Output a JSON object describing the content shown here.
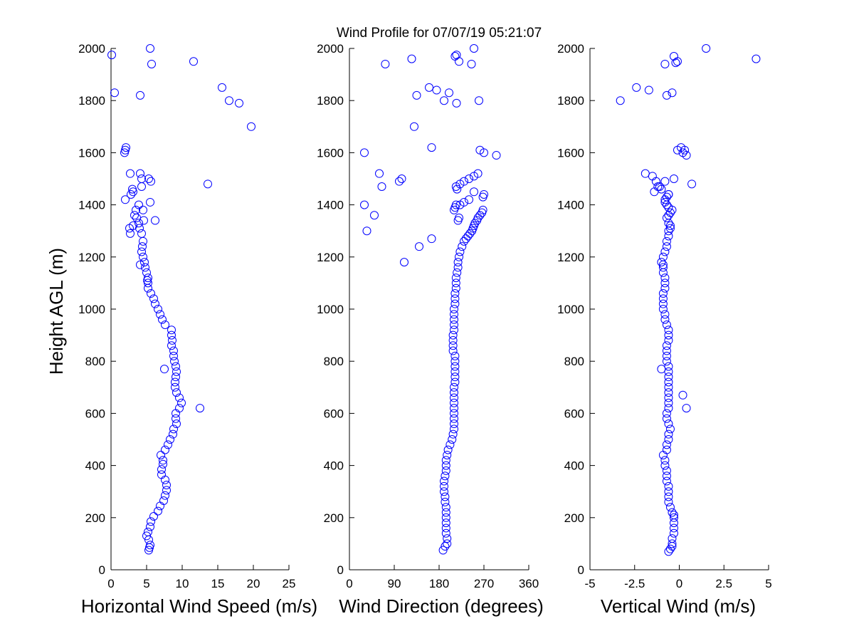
{
  "chart_data": [
    {
      "type": "scatter",
      "title": "Wind Profile for  07/07/19 05:21:07",
      "xlabel": "Horizontal Wind Speed (m/s)",
      "ylabel": "Height AGL (m)",
      "xlim": [
        0,
        25
      ],
      "ylim": [
        0,
        2000
      ],
      "xticks": [
        0,
        5,
        10,
        15,
        20,
        25
      ],
      "xtick_labels": [
        "0",
        "5",
        "10",
        "15",
        "20",
        "25"
      ],
      "yticks": [
        0,
        200,
        400,
        600,
        800,
        1000,
        1200,
        1400,
        1600,
        1800,
        2000
      ],
      "ytick_labels": [
        "0",
        "200",
        "400",
        "600",
        "800",
        "1000",
        "1200",
        "1400",
        "1600",
        "1800",
        "2000"
      ],
      "series": [
        {
          "name": "Horizontal Wind Speed",
          "x": [
            5.3,
            5.4,
            5.5,
            5.3,
            5.0,
            5.2,
            5.5,
            5.6,
            6.0,
            6.6,
            6.9,
            7.4,
            7.6,
            7.8,
            7.8,
            7.6,
            7.1,
            7.1,
            7.3,
            7.3,
            7.0,
            7.6,
            8.0,
            8.3,
            8.7,
            8.8,
            9.2,
            9.1,
            9.1,
            9.6,
            9.9,
            9.6,
            9.2,
            9.0,
            9.0,
            9.1,
            9.2,
            9.1,
            7.5,
            8.9,
            8.8,
            8.8,
            8.5,
            8.6,
            8.5,
            8.5,
            7.6,
            7.2,
            6.9,
            6.6,
            6.2,
            6.0,
            5.6,
            5.2,
            5.2,
            5.1,
            5.2,
            5.0,
            4.8,
            4.7,
            4.5,
            4.3,
            4.4,
            4.5,
            4.1,
            4.3,
            4.0,
            3.9,
            3.6,
            3.3,
            2.7,
            2.6,
            3.1,
            4.6,
            6.2,
            3.5,
            4.5,
            5.5,
            3.9,
            2.8,
            2.0,
            3.0,
            4.3,
            5.6,
            3.1,
            4.3,
            5.3,
            4.1,
            2.7,
            1.9,
            2.0,
            2.1,
            12.5,
            13.6,
            19.7,
            18.0,
            16.6,
            15.6,
            0.5,
            4.1,
            5.7,
            11.6,
            5.5,
            0.1
          ],
          "y": [
            75,
            85,
            95,
            115,
            130,
            145,
            165,
            185,
            205,
            225,
            245,
            265,
            285,
            305,
            325,
            345,
            365,
            385,
            405,
            420,
            440,
            460,
            480,
            500,
            520,
            540,
            560,
            580,
            600,
            620,
            640,
            660,
            680,
            700,
            720,
            740,
            760,
            780,
            770,
            800,
            820,
            840,
            860,
            880,
            900,
            920,
            940,
            960,
            980,
            1000,
            1020,
            1040,
            1060,
            1080,
            1100,
            1110,
            1120,
            1140,
            1160,
            1180,
            1200,
            1220,
            1240,
            1260,
            1170,
            1290,
            1310,
            1330,
            1350,
            1360,
            1290,
            1310,
            1320,
            1340,
            1340,
            1380,
            1380,
            1410,
            1400,
            1440,
            1420,
            1460,
            1470,
            1490,
            1450,
            1500,
            1500,
            1520,
            1520,
            1600,
            1610,
            1620,
            620,
            1480,
            1700,
            1790,
            1800,
            1850,
            1830,
            1820,
            1940,
            1950,
            2000,
            1975
          ]
        }
      ]
    },
    {
      "type": "scatter",
      "title": "",
      "xlabel": "Wind Direction (degrees)",
      "ylabel": "",
      "xlim": [
        0,
        360
      ],
      "ylim": [
        0,
        2000
      ],
      "xticks": [
        0,
        90,
        180,
        270,
        360
      ],
      "xtick_labels": [
        "0",
        "90",
        "180",
        "270",
        "360"
      ],
      "yticks": [
        0,
        200,
        400,
        600,
        800,
        1000,
        1200,
        1400,
        1600,
        1800,
        2000
      ],
      "ytick_labels": [
        "0",
        "200",
        "400",
        "600",
        "800",
        "1000",
        "1200",
        "1400",
        "1600",
        "1800",
        "2000"
      ],
      "series": [
        {
          "name": "Wind Direction",
          "x": [
            188,
            192,
            196,
            196,
            194,
            194,
            194,
            194,
            194,
            194,
            192,
            192,
            190,
            190,
            190,
            192,
            194,
            194,
            194,
            196,
            198,
            202,
            206,
            208,
            210,
            210,
            210,
            210,
            210,
            210,
            210,
            210,
            210,
            212,
            212,
            212,
            212,
            212,
            212,
            208,
            208,
            208,
            208,
            210,
            210,
            210,
            210,
            210,
            212,
            212,
            212,
            214,
            214,
            214,
            216,
            218,
            218,
            220,
            222,
            226,
            230,
            234,
            238,
            242,
            246,
            248,
            250,
            252,
            256,
            258,
            262,
            266,
            268,
            270,
            268,
            250,
            240,
            230,
            222,
            220,
            218,
            210,
            212,
            214,
            216,
            214,
            222,
            230,
            240,
            250,
            258,
            262,
            270,
            295,
            165,
            175,
            190,
            200,
            160,
            212,
            215,
            220,
            245,
            250,
            125,
            130,
            135,
            215,
            260,
            65,
            60,
            72,
            100,
            105,
            30,
            30,
            50,
            35,
            110,
            140,
            165
          ],
          "y": [
            75,
            90,
            100,
            120,
            140,
            160,
            180,
            200,
            220,
            240,
            260,
            280,
            300,
            320,
            340,
            360,
            380,
            400,
            420,
            440,
            460,
            480,
            500,
            520,
            540,
            560,
            580,
            600,
            620,
            640,
            660,
            680,
            700,
            720,
            740,
            760,
            780,
            800,
            820,
            840,
            860,
            880,
            900,
            920,
            940,
            960,
            980,
            1000,
            1020,
            1040,
            1060,
            1080,
            1100,
            1120,
            1140,
            1160,
            1180,
            1200,
            1220,
            1240,
            1260,
            1270,
            1280,
            1290,
            1300,
            1310,
            1320,
            1330,
            1340,
            1350,
            1360,
            1370,
            1380,
            1440,
            1430,
            1450,
            1420,
            1410,
            1400,
            1350,
            1340,
            1380,
            1390,
            1400,
            1460,
            1470,
            1480,
            1490,
            1500,
            1510,
            1520,
            1610,
            1600,
            1590,
            1620,
            1840,
            1800,
            1830,
            1850,
            1970,
            1975,
            1950,
            1940,
            2000,
            1960,
            1700,
            1820,
            1790,
            1800,
            1470,
            1520,
            1940,
            1490,
            1500,
            1600,
            1400,
            1360,
            1300,
            1180,
            1240,
            1270
          ],
          "comment": ""
        }
      ]
    },
    {
      "type": "scatter",
      "title": "",
      "xlabel": "Vertical Wind (m/s)",
      "ylabel": "",
      "xlim": [
        -5,
        5
      ],
      "ylim": [
        0,
        2000
      ],
      "xticks": [
        -5,
        -2.5,
        0,
        2.5,
        5
      ],
      "xtick_labels": [
        "-5",
        "-2.5",
        "0",
        "2.5",
        "5"
      ],
      "yticks": [
        0,
        200,
        400,
        600,
        800,
        1000,
        1200,
        1400,
        1600,
        1800,
        2000
      ],
      "ytick_labels": [
        "0",
        "200",
        "400",
        "600",
        "800",
        "1000",
        "1200",
        "1400",
        "1600",
        "1800",
        "2000"
      ],
      "series": [
        {
          "name": "Vertical Wind",
          "x": [
            -0.6,
            -0.5,
            -0.4,
            -0.4,
            -0.4,
            -0.3,
            -0.3,
            -0.3,
            -0.3,
            -0.3,
            -0.4,
            -0.5,
            -0.6,
            -0.6,
            -0.6,
            -0.6,
            -0.7,
            -0.7,
            -0.7,
            -0.8,
            -0.8,
            -0.9,
            -0.7,
            -0.7,
            -0.6,
            -0.6,
            -0.5,
            -0.6,
            -0.7,
            -0.7,
            -0.6,
            -0.6,
            -0.6,
            -0.6,
            -0.6,
            -0.6,
            -0.6,
            -0.6,
            -0.6,
            -0.7,
            -0.7,
            -0.7,
            -0.7,
            -0.6,
            -0.6,
            -0.6,
            -0.7,
            -0.8,
            -0.8,
            -0.9,
            -0.9,
            -0.9,
            -0.9,
            -0.8,
            -0.8,
            -0.8,
            -0.9,
            -0.9,
            -0.9,
            -1.0,
            -0.9,
            -0.8,
            -0.7,
            -0.7,
            -0.6,
            -0.6,
            -0.5,
            -0.5,
            -0.6,
            -0.7,
            -0.6,
            -0.5,
            -0.4,
            -0.6,
            -0.7,
            -0.8,
            -0.8,
            -0.7,
            -0.6,
            -0.6,
            -1.4,
            -1.0,
            0.4,
            0.2,
            -0.1,
            -1.0,
            -1.2,
            -0.3,
            -0.8,
            -1.5,
            -1.9,
            -1.3,
            -1.1,
            0.1,
            0.2,
            0.4,
            0.3,
            0.7,
            -0.3,
            -0.8,
            -3.3,
            -2.4,
            -1.7,
            -0.4,
            -0.7,
            -0.1,
            -0.2,
            1.5,
            4.3
          ],
          "y": [
            70,
            80,
            90,
            100,
            120,
            140,
            160,
            180,
            200,
            210,
            220,
            240,
            260,
            280,
            300,
            320,
            340,
            360,
            380,
            400,
            420,
            440,
            460,
            480,
            500,
            520,
            540,
            560,
            580,
            600,
            620,
            640,
            660,
            680,
            700,
            720,
            740,
            760,
            780,
            800,
            820,
            840,
            860,
            880,
            900,
            920,
            940,
            960,
            980,
            1000,
            1020,
            1040,
            1060,
            1080,
            1100,
            1120,
            1140,
            1160,
            1170,
            1180,
            1200,
            1220,
            1240,
            1260,
            1280,
            1300,
            1310,
            1320,
            1330,
            1350,
            1360,
            1370,
            1380,
            1390,
            1400,
            1410,
            1420,
            1430,
            1440,
            1440,
            1450,
            770,
            620,
            670,
            1610,
            1460,
            1470,
            1500,
            1490,
            1510,
            1520,
            1490,
            1470,
            1620,
            1600,
            1590,
            1610,
            1480,
            1970,
            1940,
            1800,
            1850,
            1840,
            1830,
            1820,
            1950,
            1945,
            2000,
            1960
          ]
        }
      ]
    }
  ]
}
